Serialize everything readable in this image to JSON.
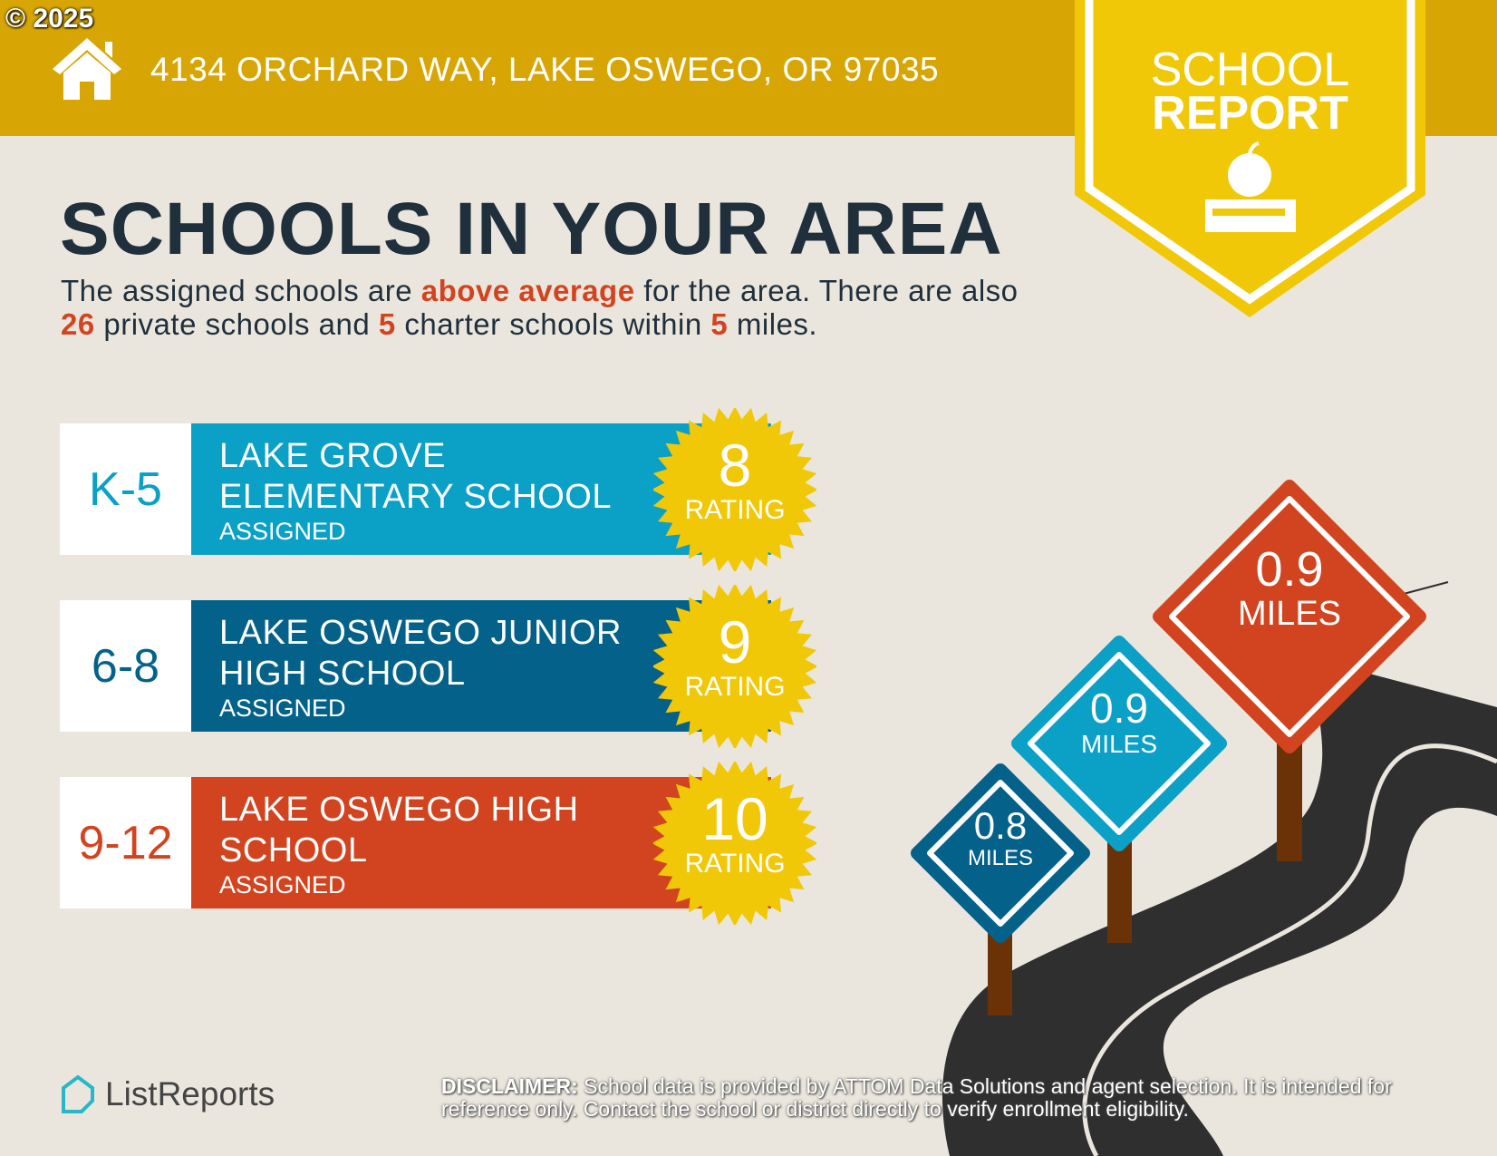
{
  "copyright": "© 2025",
  "address": "4134 ORCHARD WAY, LAKE OSWEGO, OR 97035",
  "badge": {
    "line1": "SCHOOL",
    "line2": "REPORT"
  },
  "title": "SCHOOLS IN YOUR AREA",
  "summary": {
    "t1": "The assigned schools are ",
    "h1": "above average",
    "t2": " for the area. There are also ",
    "h2": "26",
    "t3": " private schools and ",
    "h3": "5",
    "t4": " charter schools within ",
    "h4": "5",
    "t5": " miles."
  },
  "schools": [
    {
      "grade": "K-5",
      "name": "LAKE GROVE ELEMENTARY SCHOOL",
      "status": "ASSIGNED",
      "rating": "8",
      "rating_label": "RATING",
      "color": "#0ba0c6",
      "grade_color": "#0ba0c6"
    },
    {
      "grade": "6-8",
      "name": "LAKE OSWEGO JUNIOR HIGH SCHOOL",
      "status": "ASSIGNED",
      "rating": "9",
      "rating_label": "RATING",
      "color": "#04628a",
      "grade_color": "#04628a"
    },
    {
      "grade": "9-12",
      "name": "LAKE OSWEGO HIGH SCHOOL",
      "status": "ASSIGNED",
      "rating": "10",
      "rating_label": "RATING",
      "color": "#d24420",
      "grade_color": "#d24420"
    }
  ],
  "distances": [
    {
      "value": "0.8",
      "unit": "MILES",
      "color": "#04628a"
    },
    {
      "value": "0.9",
      "unit": "MILES",
      "color": "#0ba0c6"
    },
    {
      "value": "0.9",
      "unit": "MILES",
      "color": "#d24420"
    }
  ],
  "brand": "ListReports",
  "disclaimer": {
    "label": "DISCLAIMER:",
    "text": " School data is provided by ATTOM Data Solutions and agent selection. It is intended for reference only. Contact the school or district directly to verify enrollment eligibility."
  }
}
